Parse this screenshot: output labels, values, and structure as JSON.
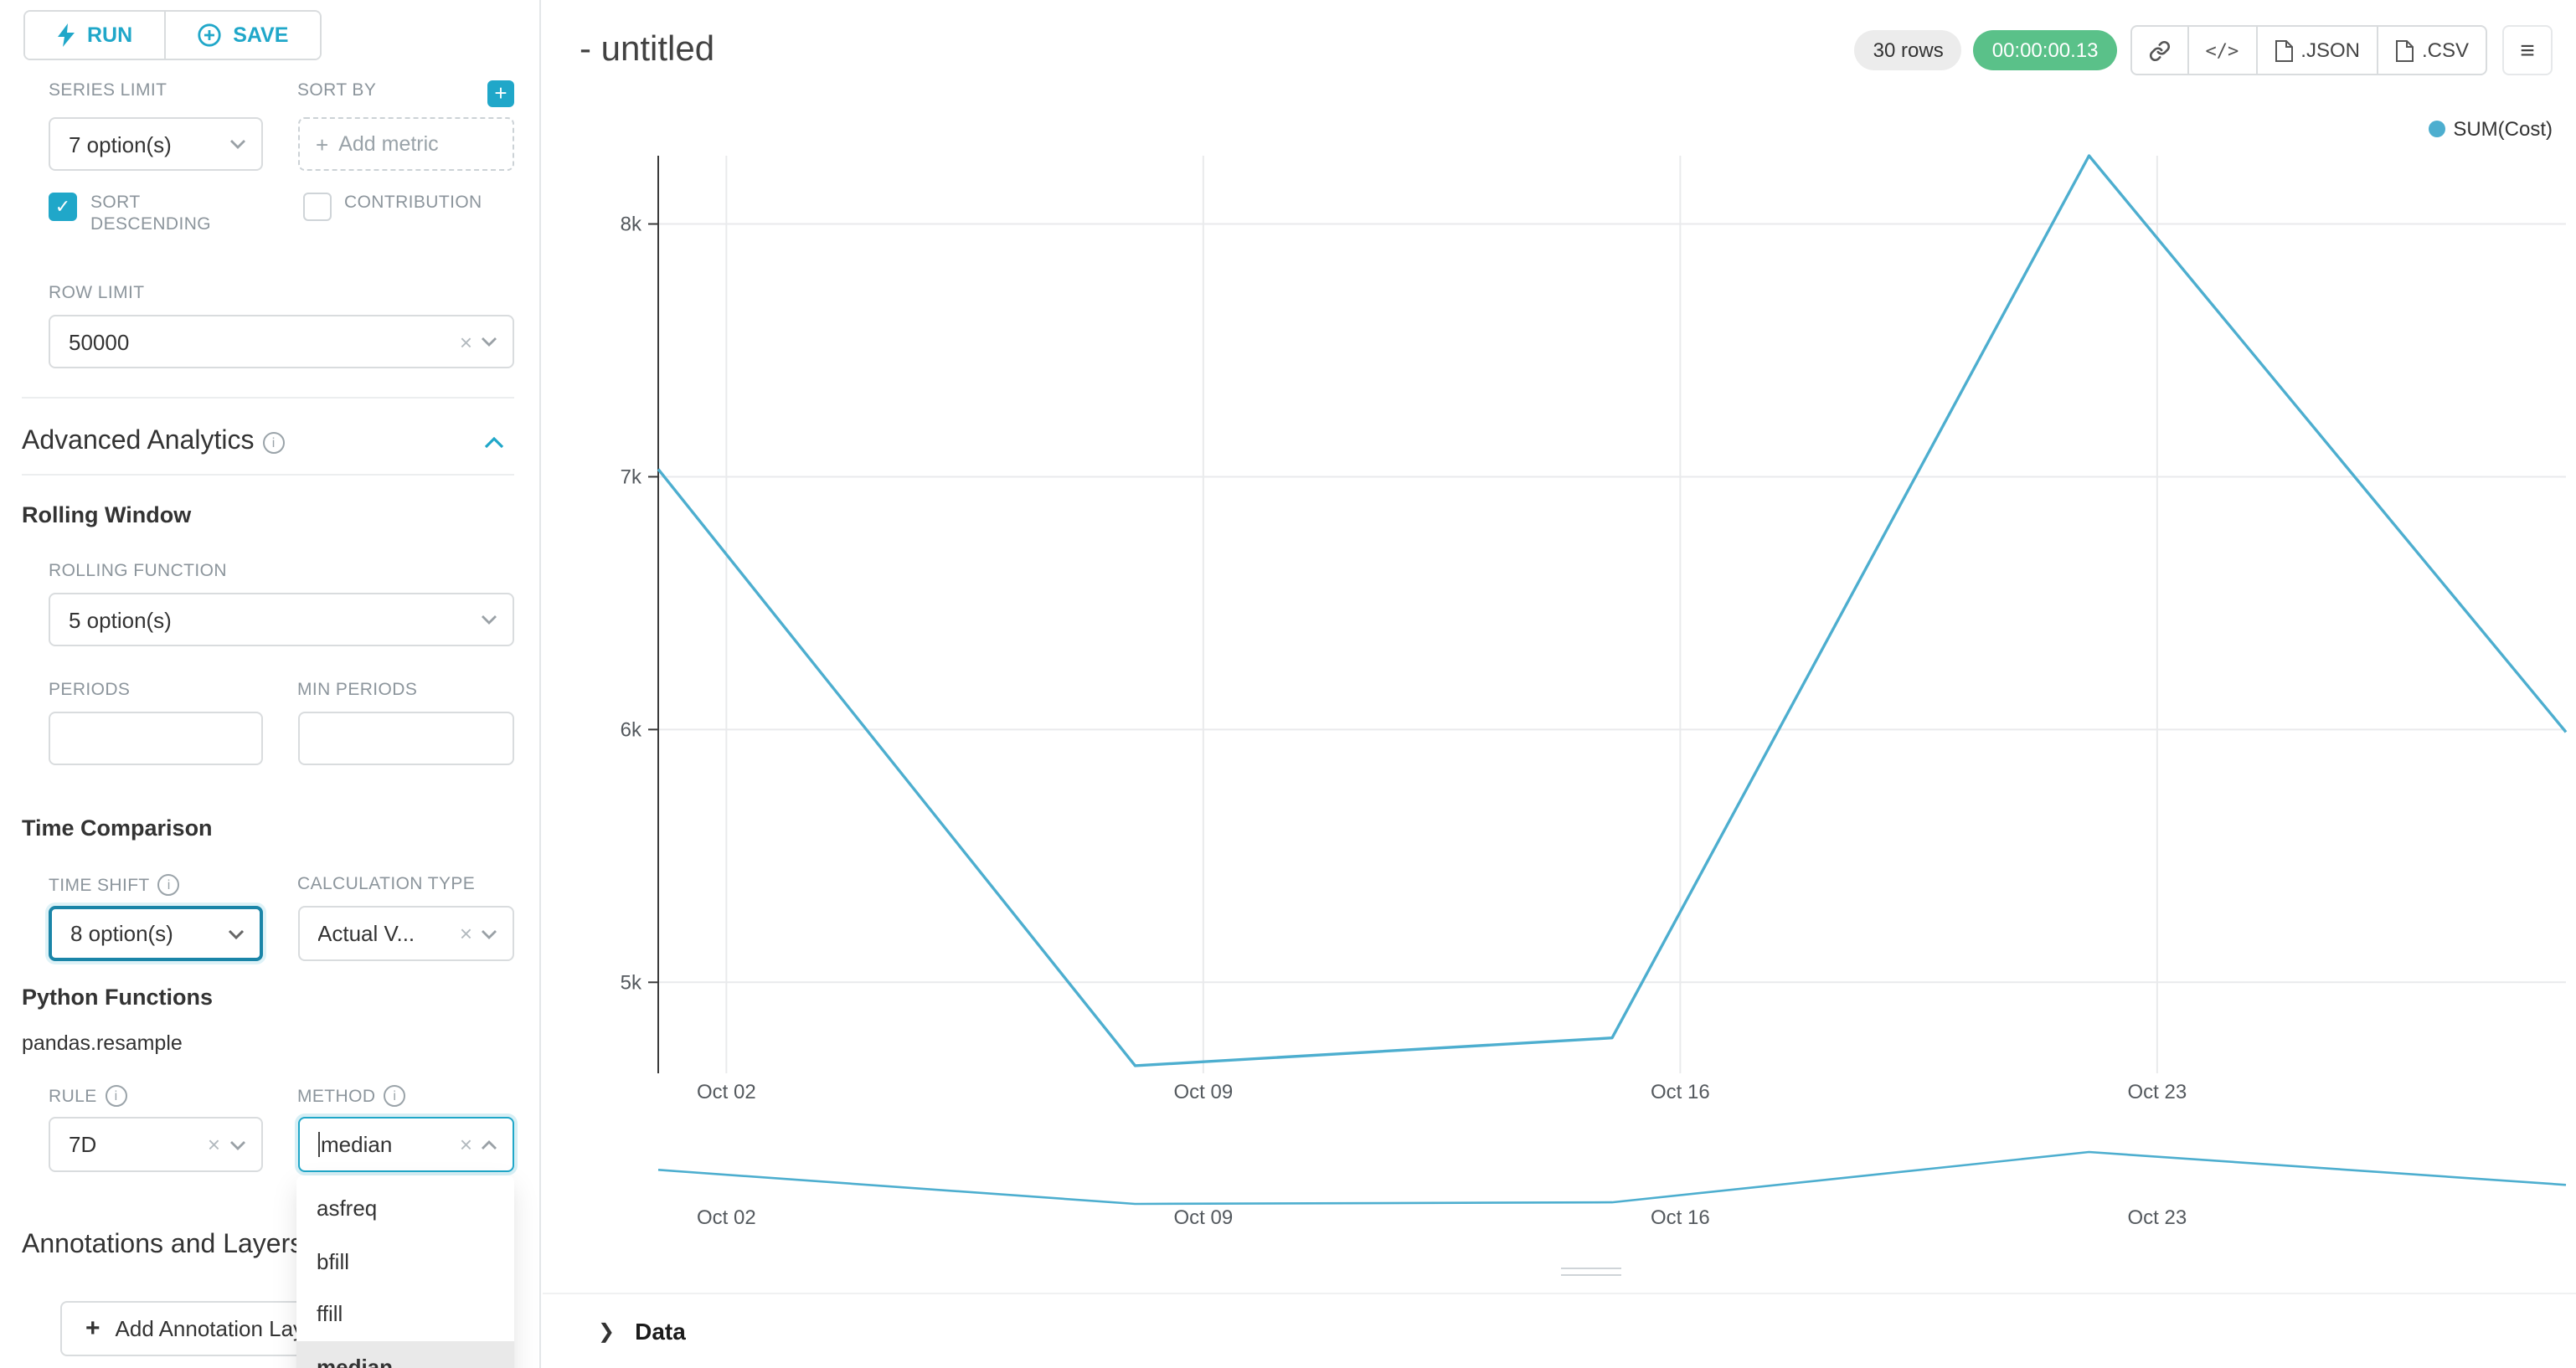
{
  "icons": {
    "clear": "×",
    "plus": "+",
    "menu": "≡",
    "chevron_right": "❯",
    "check": "✓",
    "info": "i",
    "code": "</>"
  },
  "toolbar": {
    "run": "RUN",
    "save": "SAVE"
  },
  "panel": {
    "series_limit": {
      "label": "SERIES LIMIT",
      "value": "7 option(s)"
    },
    "sort_by": {
      "label": "SORT BY",
      "placeholder": "Add metric"
    },
    "sort_descending": {
      "label": "SORT DESCENDING",
      "checked": true
    },
    "contribution": {
      "label": "CONTRIBUTION",
      "checked": false
    },
    "row_limit": {
      "label": "ROW LIMIT",
      "value": "50000"
    },
    "advanced_analytics": {
      "title": "Advanced Analytics"
    },
    "rolling_window": {
      "title": "Rolling Window"
    },
    "rolling_function": {
      "label": "ROLLING FUNCTION",
      "value": "5 option(s)"
    },
    "periods": {
      "label": "PERIODS",
      "value": ""
    },
    "min_periods": {
      "label": "MIN PERIODS",
      "value": ""
    },
    "time_comparison": {
      "title": "Time Comparison"
    },
    "time_shift": {
      "label": "TIME SHIFT",
      "value": "8 option(s)"
    },
    "calculation_type": {
      "label": "CALCULATION TYPE",
      "value": "Actual V..."
    },
    "python_functions": {
      "title": "Python Functions",
      "subtitle": "pandas.resample"
    },
    "rule": {
      "label": "RULE",
      "value": "7D"
    },
    "method": {
      "label": "METHOD",
      "value": "median",
      "options": [
        "asfreq",
        "bfill",
        "ffill",
        "median"
      ],
      "selected": "median"
    },
    "annotations": {
      "title": "Annotations and Layers",
      "add_button": "Add Annotation Layer"
    }
  },
  "header": {
    "title": "- untitled",
    "rows_badge": "30 rows",
    "timer": "00:00:00.13",
    "json": ".JSON",
    "csv": ".CSV"
  },
  "chart_data": {
    "type": "line",
    "title": "",
    "legend": [
      "SUM(Cost)"
    ],
    "color": "#4daecf",
    "x_type": "time",
    "x_domain_days": [
      1,
      29
    ],
    "y_domain": [
      4640,
      8270
    ],
    "x_tick_days": [
      2,
      9,
      16,
      23
    ],
    "x_tick_labels": [
      "Oct 02",
      "Oct 09",
      "Oct 16",
      "Oct 23"
    ],
    "y_tick_values": [
      5000,
      6000,
      7000,
      8000
    ],
    "y_tick_labels": [
      "5k",
      "6k",
      "7k",
      "8k"
    ],
    "grid": true,
    "legend_position": "top-right",
    "series": [
      {
        "name": "SUM(Cost)",
        "points": [
          {
            "x": "Oct 01",
            "day": 1,
            "y": 7030
          },
          {
            "x": "Oct 08",
            "day": 8,
            "y": 4670
          },
          {
            "x": "Oct 15",
            "day": 15,
            "y": 4780
          },
          {
            "x": "Oct 22",
            "day": 22,
            "y": 8270
          },
          {
            "x": "Oct 29",
            "day": 29,
            "y": 5990
          }
        ]
      }
    ],
    "preview": {
      "x_tick_labels": [
        "Oct 02",
        "Oct 09",
        "Oct 16",
        "Oct 23"
      ]
    }
  },
  "data_panel": {
    "label": "Data"
  }
}
